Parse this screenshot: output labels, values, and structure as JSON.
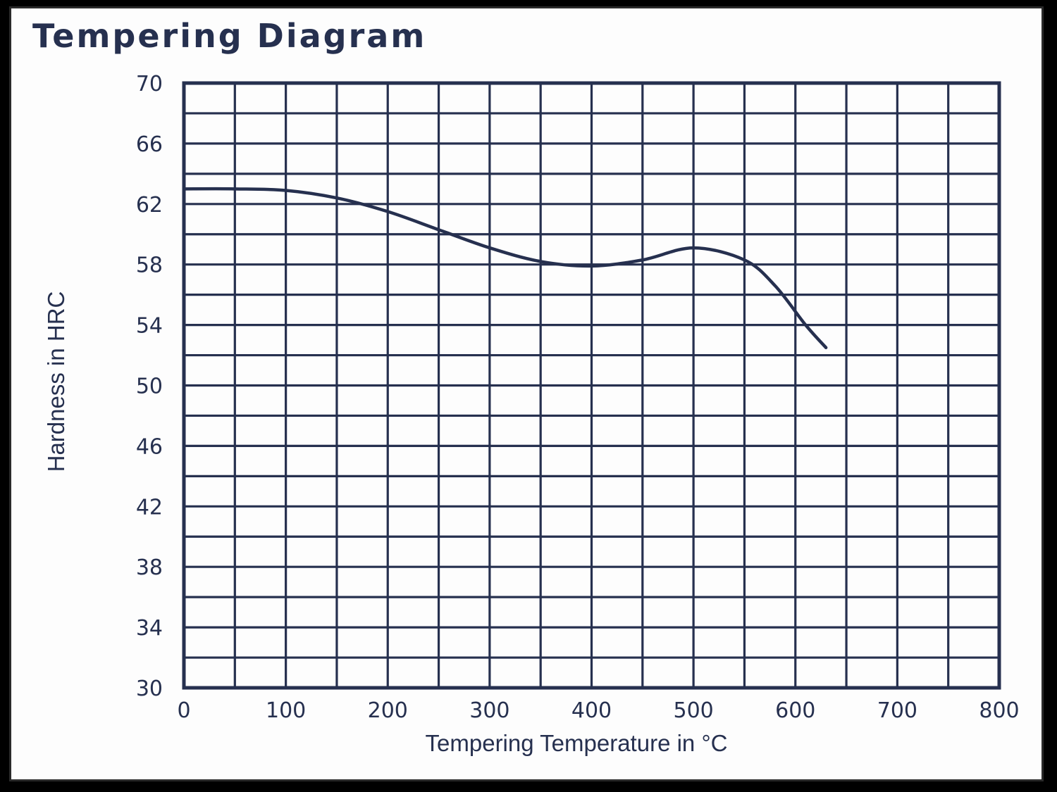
{
  "chart_data": {
    "type": "line",
    "title": "Tempering Diagram",
    "xlabel": "Tempering Temperature in °C",
    "ylabel": "Hardness in HRC",
    "xlim": [
      0,
      800
    ],
    "ylim": [
      30,
      70
    ],
    "xticks": [
      0,
      100,
      200,
      300,
      400,
      500,
      600,
      700,
      800
    ],
    "yticks": [
      30,
      34,
      38,
      42,
      46,
      50,
      54,
      58,
      62,
      66,
      70
    ],
    "grid": true,
    "colors": {
      "ink": "#26304f",
      "paper": "#fdfdfd"
    },
    "series": [
      {
        "x": [
          0,
          50,
          100,
          150,
          200,
          250,
          300,
          350,
          400,
          450,
          500,
          550,
          580,
          610,
          630
        ],
        "y": [
          63.0,
          63.0,
          62.9,
          62.4,
          61.5,
          60.3,
          59.1,
          58.2,
          57.9,
          58.3,
          59.1,
          58.3,
          56.6,
          54.0,
          52.5
        ]
      }
    ]
  }
}
